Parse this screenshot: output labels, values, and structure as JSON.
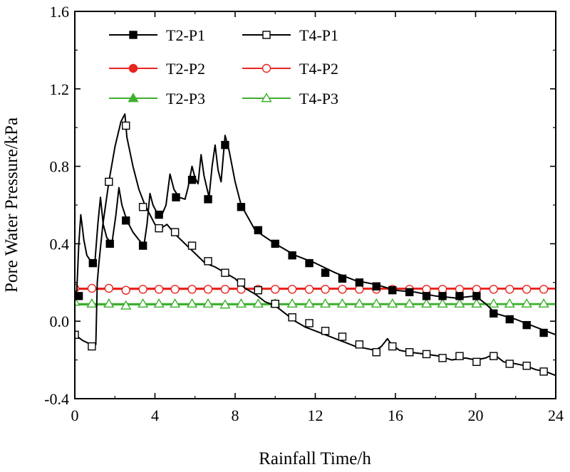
{
  "chart_data": {
    "type": "line",
    "xlabel": "Rainfall Time/h",
    "ylabel": "Pore Water Pressure/kPa",
    "xlim": [
      0,
      24
    ],
    "ylim": [
      -0.4,
      1.6
    ],
    "xticks": [
      "0",
      "4",
      "8",
      "12",
      "16",
      "20",
      "24"
    ],
    "yticks": [
      "-0.4",
      "0.0",
      "0.4",
      "0.8",
      "1.2",
      "1.6"
    ],
    "grid": false,
    "legend_position": "top-left",
    "series": [
      {
        "name": "T2-P1",
        "color": "#000000",
        "marker": "square-filled",
        "line": [
          [
            0,
            0.13
          ],
          [
            0.1,
            0.16
          ],
          [
            0.2,
            0.4
          ],
          [
            0.3,
            0.55
          ],
          [
            0.45,
            0.42
          ],
          [
            0.6,
            0.34
          ],
          [
            0.8,
            0.31
          ],
          [
            1.0,
            0.3
          ],
          [
            1.15,
            0.5
          ],
          [
            1.28,
            0.64
          ],
          [
            1.42,
            0.5
          ],
          [
            1.6,
            0.43
          ],
          [
            1.85,
            0.4
          ],
          [
            2.05,
            0.55
          ],
          [
            2.2,
            0.69
          ],
          [
            2.35,
            0.6
          ],
          [
            2.6,
            0.52
          ],
          [
            2.9,
            0.46
          ],
          [
            3.2,
            0.42
          ],
          [
            3.45,
            0.39
          ],
          [
            3.6,
            0.5
          ],
          [
            3.75,
            0.66
          ],
          [
            3.9,
            0.6
          ],
          [
            4.1,
            0.56
          ],
          [
            4.35,
            0.55
          ],
          [
            4.55,
            0.6
          ],
          [
            4.75,
            0.76
          ],
          [
            4.95,
            0.68
          ],
          [
            5.2,
            0.64
          ],
          [
            5.5,
            0.63
          ],
          [
            5.65,
            0.69
          ],
          [
            5.85,
            0.8
          ],
          [
            6.0,
            0.74
          ],
          [
            6.15,
            0.71
          ],
          [
            6.3,
            0.86
          ],
          [
            6.45,
            0.75
          ],
          [
            6.7,
            0.64
          ],
          [
            6.85,
            0.8
          ],
          [
            7.0,
            0.91
          ],
          [
            7.15,
            0.78
          ],
          [
            7.3,
            0.72
          ],
          [
            7.5,
            0.96
          ],
          [
            7.7,
            0.88
          ],
          [
            8.0,
            0.72
          ],
          [
            8.3,
            0.6
          ],
          [
            9.0,
            0.47
          ],
          [
            10.0,
            0.4
          ],
          [
            11.0,
            0.34
          ],
          [
            12.0,
            0.3
          ],
          [
            13.0,
            0.25
          ],
          [
            14.0,
            0.21
          ],
          [
            15.0,
            0.19
          ],
          [
            16.0,
            0.16
          ],
          [
            17.0,
            0.15
          ],
          [
            18.0,
            0.13
          ],
          [
            19.0,
            0.12
          ],
          [
            20.0,
            0.13
          ],
          [
            20.5,
            0.09
          ],
          [
            21.0,
            0.04
          ],
          [
            22.0,
            0.01
          ],
          [
            23.0,
            -0.03
          ],
          [
            24.0,
            -0.07
          ]
        ],
        "markers": [
          [
            0.2,
            0.13
          ],
          [
            0.9,
            0.3
          ],
          [
            1.75,
            0.4
          ],
          [
            2.55,
            0.52
          ],
          [
            3.4,
            0.39
          ],
          [
            4.2,
            0.55
          ],
          [
            5.05,
            0.64
          ],
          [
            5.85,
            0.73
          ],
          [
            6.65,
            0.63
          ],
          [
            7.5,
            0.91
          ],
          [
            8.3,
            0.59
          ],
          [
            9.15,
            0.47
          ],
          [
            10.0,
            0.4
          ],
          [
            10.85,
            0.34
          ],
          [
            11.7,
            0.3
          ],
          [
            12.5,
            0.25
          ],
          [
            13.35,
            0.22
          ],
          [
            14.2,
            0.2
          ],
          [
            15.05,
            0.18
          ],
          [
            15.85,
            0.16
          ],
          [
            16.7,
            0.15
          ],
          [
            17.55,
            0.13
          ],
          [
            18.35,
            0.13
          ],
          [
            19.2,
            0.13
          ],
          [
            20.05,
            0.13
          ],
          [
            20.9,
            0.04
          ],
          [
            21.7,
            0.01
          ],
          [
            22.55,
            -0.02
          ],
          [
            23.4,
            -0.06
          ]
        ]
      },
      {
        "name": "T4-P1",
        "color": "#000000",
        "marker": "square-open",
        "line": [
          [
            0,
            -0.07
          ],
          [
            0.4,
            -0.1
          ],
          [
            0.8,
            -0.12
          ],
          [
            1.05,
            -0.12
          ],
          [
            1.12,
            0.2
          ],
          [
            1.2,
            0.3
          ],
          [
            1.4,
            0.5
          ],
          [
            1.7,
            0.72
          ],
          [
            2.0,
            0.9
          ],
          [
            2.3,
            1.03
          ],
          [
            2.5,
            1.07
          ],
          [
            2.6,
            0.95
          ],
          [
            2.9,
            0.8
          ],
          [
            3.2,
            0.68
          ],
          [
            3.5,
            0.6
          ],
          [
            4.0,
            0.5
          ],
          [
            4.3,
            0.48
          ],
          [
            4.6,
            0.5
          ],
          [
            5.0,
            0.45
          ],
          [
            5.5,
            0.4
          ],
          [
            6.0,
            0.35
          ],
          [
            6.5,
            0.3
          ],
          [
            7.0,
            0.28
          ],
          [
            7.5,
            0.25
          ],
          [
            8.0,
            0.22
          ],
          [
            8.5,
            0.17
          ],
          [
            9.0,
            0.14
          ],
          [
            9.5,
            0.1
          ],
          [
            10.0,
            0.08
          ],
          [
            10.5,
            0.04
          ],
          [
            11.0,
            0.0
          ],
          [
            11.5,
            -0.03
          ],
          [
            12.0,
            -0.05
          ],
          [
            12.5,
            -0.07
          ],
          [
            13.0,
            -0.09
          ],
          [
            13.5,
            -0.11
          ],
          [
            14.0,
            -0.13
          ],
          [
            14.5,
            -0.14
          ],
          [
            15.0,
            -0.15
          ],
          [
            15.3,
            -0.13
          ],
          [
            15.6,
            -0.09
          ],
          [
            15.8,
            -0.12
          ],
          [
            16.2,
            -0.15
          ],
          [
            16.7,
            -0.16
          ],
          [
            17.5,
            -0.17
          ],
          [
            18.2,
            -0.18
          ],
          [
            18.8,
            -0.2
          ],
          [
            19.5,
            -0.19
          ],
          [
            20.0,
            -0.2
          ],
          [
            20.5,
            -0.19
          ],
          [
            20.9,
            -0.17
          ],
          [
            21.4,
            -0.21
          ],
          [
            22.0,
            -0.22
          ],
          [
            22.5,
            -0.23
          ],
          [
            23.0,
            -0.25
          ],
          [
            23.5,
            -0.26
          ],
          [
            24.0,
            -0.28
          ]
        ],
        "markers": [
          [
            0,
            -0.07
          ],
          [
            0.85,
            -0.13
          ],
          [
            1.7,
            0.72
          ],
          [
            2.55,
            1.01
          ],
          [
            3.4,
            0.59
          ],
          [
            4.2,
            0.48
          ],
          [
            5.0,
            0.46
          ],
          [
            5.85,
            0.39
          ],
          [
            6.65,
            0.31
          ],
          [
            7.5,
            0.25
          ],
          [
            8.3,
            0.2
          ],
          [
            9.15,
            0.16
          ],
          [
            10.0,
            0.09
          ],
          [
            10.85,
            0.02
          ],
          [
            11.7,
            -0.01
          ],
          [
            12.5,
            -0.05
          ],
          [
            13.35,
            -0.08
          ],
          [
            14.2,
            -0.12
          ],
          [
            15.05,
            -0.16
          ],
          [
            15.85,
            -0.13
          ],
          [
            16.7,
            -0.16
          ],
          [
            17.55,
            -0.17
          ],
          [
            18.35,
            -0.19
          ],
          [
            19.2,
            -0.18
          ],
          [
            20.05,
            -0.21
          ],
          [
            20.9,
            -0.18
          ],
          [
            21.7,
            -0.22
          ],
          [
            22.55,
            -0.23
          ],
          [
            23.4,
            -0.26
          ]
        ]
      },
      {
        "name": "T2-P2",
        "color": "#e8251f",
        "marker": "circle-filled",
        "line": [
          [
            0,
            0.17
          ],
          [
            24,
            0.17
          ]
        ],
        "markers": []
      },
      {
        "name": "T4-P2",
        "color": "#e8251f",
        "marker": "circle-open",
        "line": [
          [
            0,
            0.165
          ],
          [
            24,
            0.167
          ]
        ],
        "markers": [
          [
            0,
            0.17
          ],
          [
            0.85,
            0.17
          ],
          [
            1.7,
            0.17
          ],
          [
            2.55,
            0.16
          ],
          [
            3.4,
            0.165
          ],
          [
            4.2,
            0.165
          ],
          [
            5.0,
            0.165
          ],
          [
            5.85,
            0.165
          ],
          [
            6.65,
            0.165
          ],
          [
            7.5,
            0.165
          ],
          [
            8.3,
            0.165
          ],
          [
            9.15,
            0.165
          ],
          [
            10.0,
            0.165
          ],
          [
            10.85,
            0.165
          ],
          [
            11.7,
            0.165
          ],
          [
            12.5,
            0.165
          ],
          [
            13.35,
            0.165
          ],
          [
            14.2,
            0.165
          ],
          [
            15.05,
            0.165
          ],
          [
            15.85,
            0.165
          ],
          [
            16.7,
            0.165
          ],
          [
            17.55,
            0.165
          ],
          [
            18.35,
            0.165
          ],
          [
            19.2,
            0.165
          ],
          [
            20.05,
            0.165
          ],
          [
            20.9,
            0.165
          ],
          [
            21.7,
            0.165
          ],
          [
            22.55,
            0.165
          ],
          [
            23.4,
            0.165
          ]
        ]
      },
      {
        "name": "T2-P3",
        "color": "#3db02e",
        "marker": "triangle-filled",
        "line": [
          [
            0,
            0.09
          ],
          [
            24,
            0.09
          ]
        ],
        "markers": []
      },
      {
        "name": "T4-P3",
        "color": "#3db02e",
        "marker": "triangle-open",
        "line": [
          [
            0,
            0.085
          ],
          [
            24,
            0.087
          ]
        ],
        "markers": [
          [
            0,
            0.1
          ],
          [
            0.85,
            0.09
          ],
          [
            1.7,
            0.09
          ],
          [
            2.55,
            0.08
          ],
          [
            3.4,
            0.09
          ],
          [
            4.2,
            0.09
          ],
          [
            5.0,
            0.09
          ],
          [
            5.85,
            0.09
          ],
          [
            6.65,
            0.09
          ],
          [
            7.5,
            0.085
          ],
          [
            8.3,
            0.09
          ],
          [
            9.15,
            0.09
          ],
          [
            10.0,
            0.09
          ],
          [
            10.85,
            0.09
          ],
          [
            11.7,
            0.09
          ],
          [
            12.5,
            0.09
          ],
          [
            13.35,
            0.09
          ],
          [
            14.2,
            0.09
          ],
          [
            15.05,
            0.09
          ],
          [
            15.85,
            0.09
          ],
          [
            16.7,
            0.09
          ],
          [
            17.55,
            0.09
          ],
          [
            18.35,
            0.09
          ],
          [
            19.2,
            0.09
          ],
          [
            20.05,
            0.09
          ],
          [
            20.9,
            0.09
          ],
          [
            21.7,
            0.09
          ],
          [
            22.55,
            0.09
          ],
          [
            23.4,
            0.09
          ]
        ]
      }
    ]
  }
}
